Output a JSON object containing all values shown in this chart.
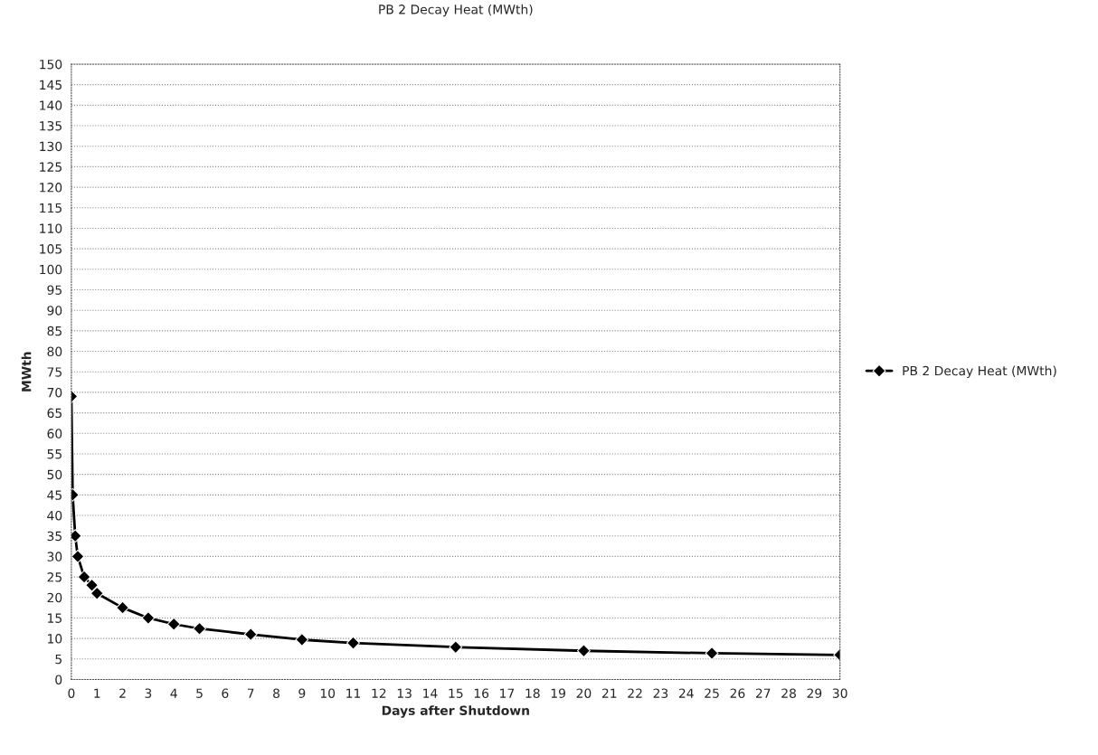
{
  "chart_data": {
    "type": "line",
    "title": "PB 2 Decay Heat (MWth)",
    "xlabel": "Days after Shutdown",
    "ylabel": "MWth",
    "x": [
      0,
      0.05,
      0.15,
      0.25,
      0.5,
      0.8,
      1,
      2,
      3,
      4,
      5,
      7,
      9,
      11,
      15,
      20,
      25,
      30
    ],
    "series": [
      {
        "name": "PB 2 Decay Heat (MWth)",
        "color": "#000000",
        "values": [
          69,
          45,
          35,
          30,
          25,
          23,
          21,
          17.5,
          15,
          13.5,
          12.4,
          11,
          9.7,
          8.9,
          7.9,
          7,
          6.4,
          6
        ]
      }
    ],
    "xlim": [
      0,
      30
    ],
    "xticks": [
      0,
      1,
      2,
      3,
      4,
      5,
      6,
      7,
      8,
      9,
      10,
      11,
      12,
      13,
      14,
      15,
      16,
      17,
      18,
      19,
      20,
      21,
      22,
      23,
      24,
      25,
      26,
      27,
      28,
      29,
      30
    ],
    "ylim": [
      0,
      150
    ],
    "yticks": [
      0,
      5,
      10,
      15,
      20,
      25,
      30,
      35,
      40,
      45,
      50,
      55,
      60,
      65,
      70,
      75,
      80,
      85,
      90,
      95,
      100,
      105,
      110,
      115,
      120,
      125,
      130,
      135,
      140,
      145,
      150
    ],
    "grid": "y",
    "legend": "right",
    "marker": "diamond",
    "line_style": "solid"
  }
}
